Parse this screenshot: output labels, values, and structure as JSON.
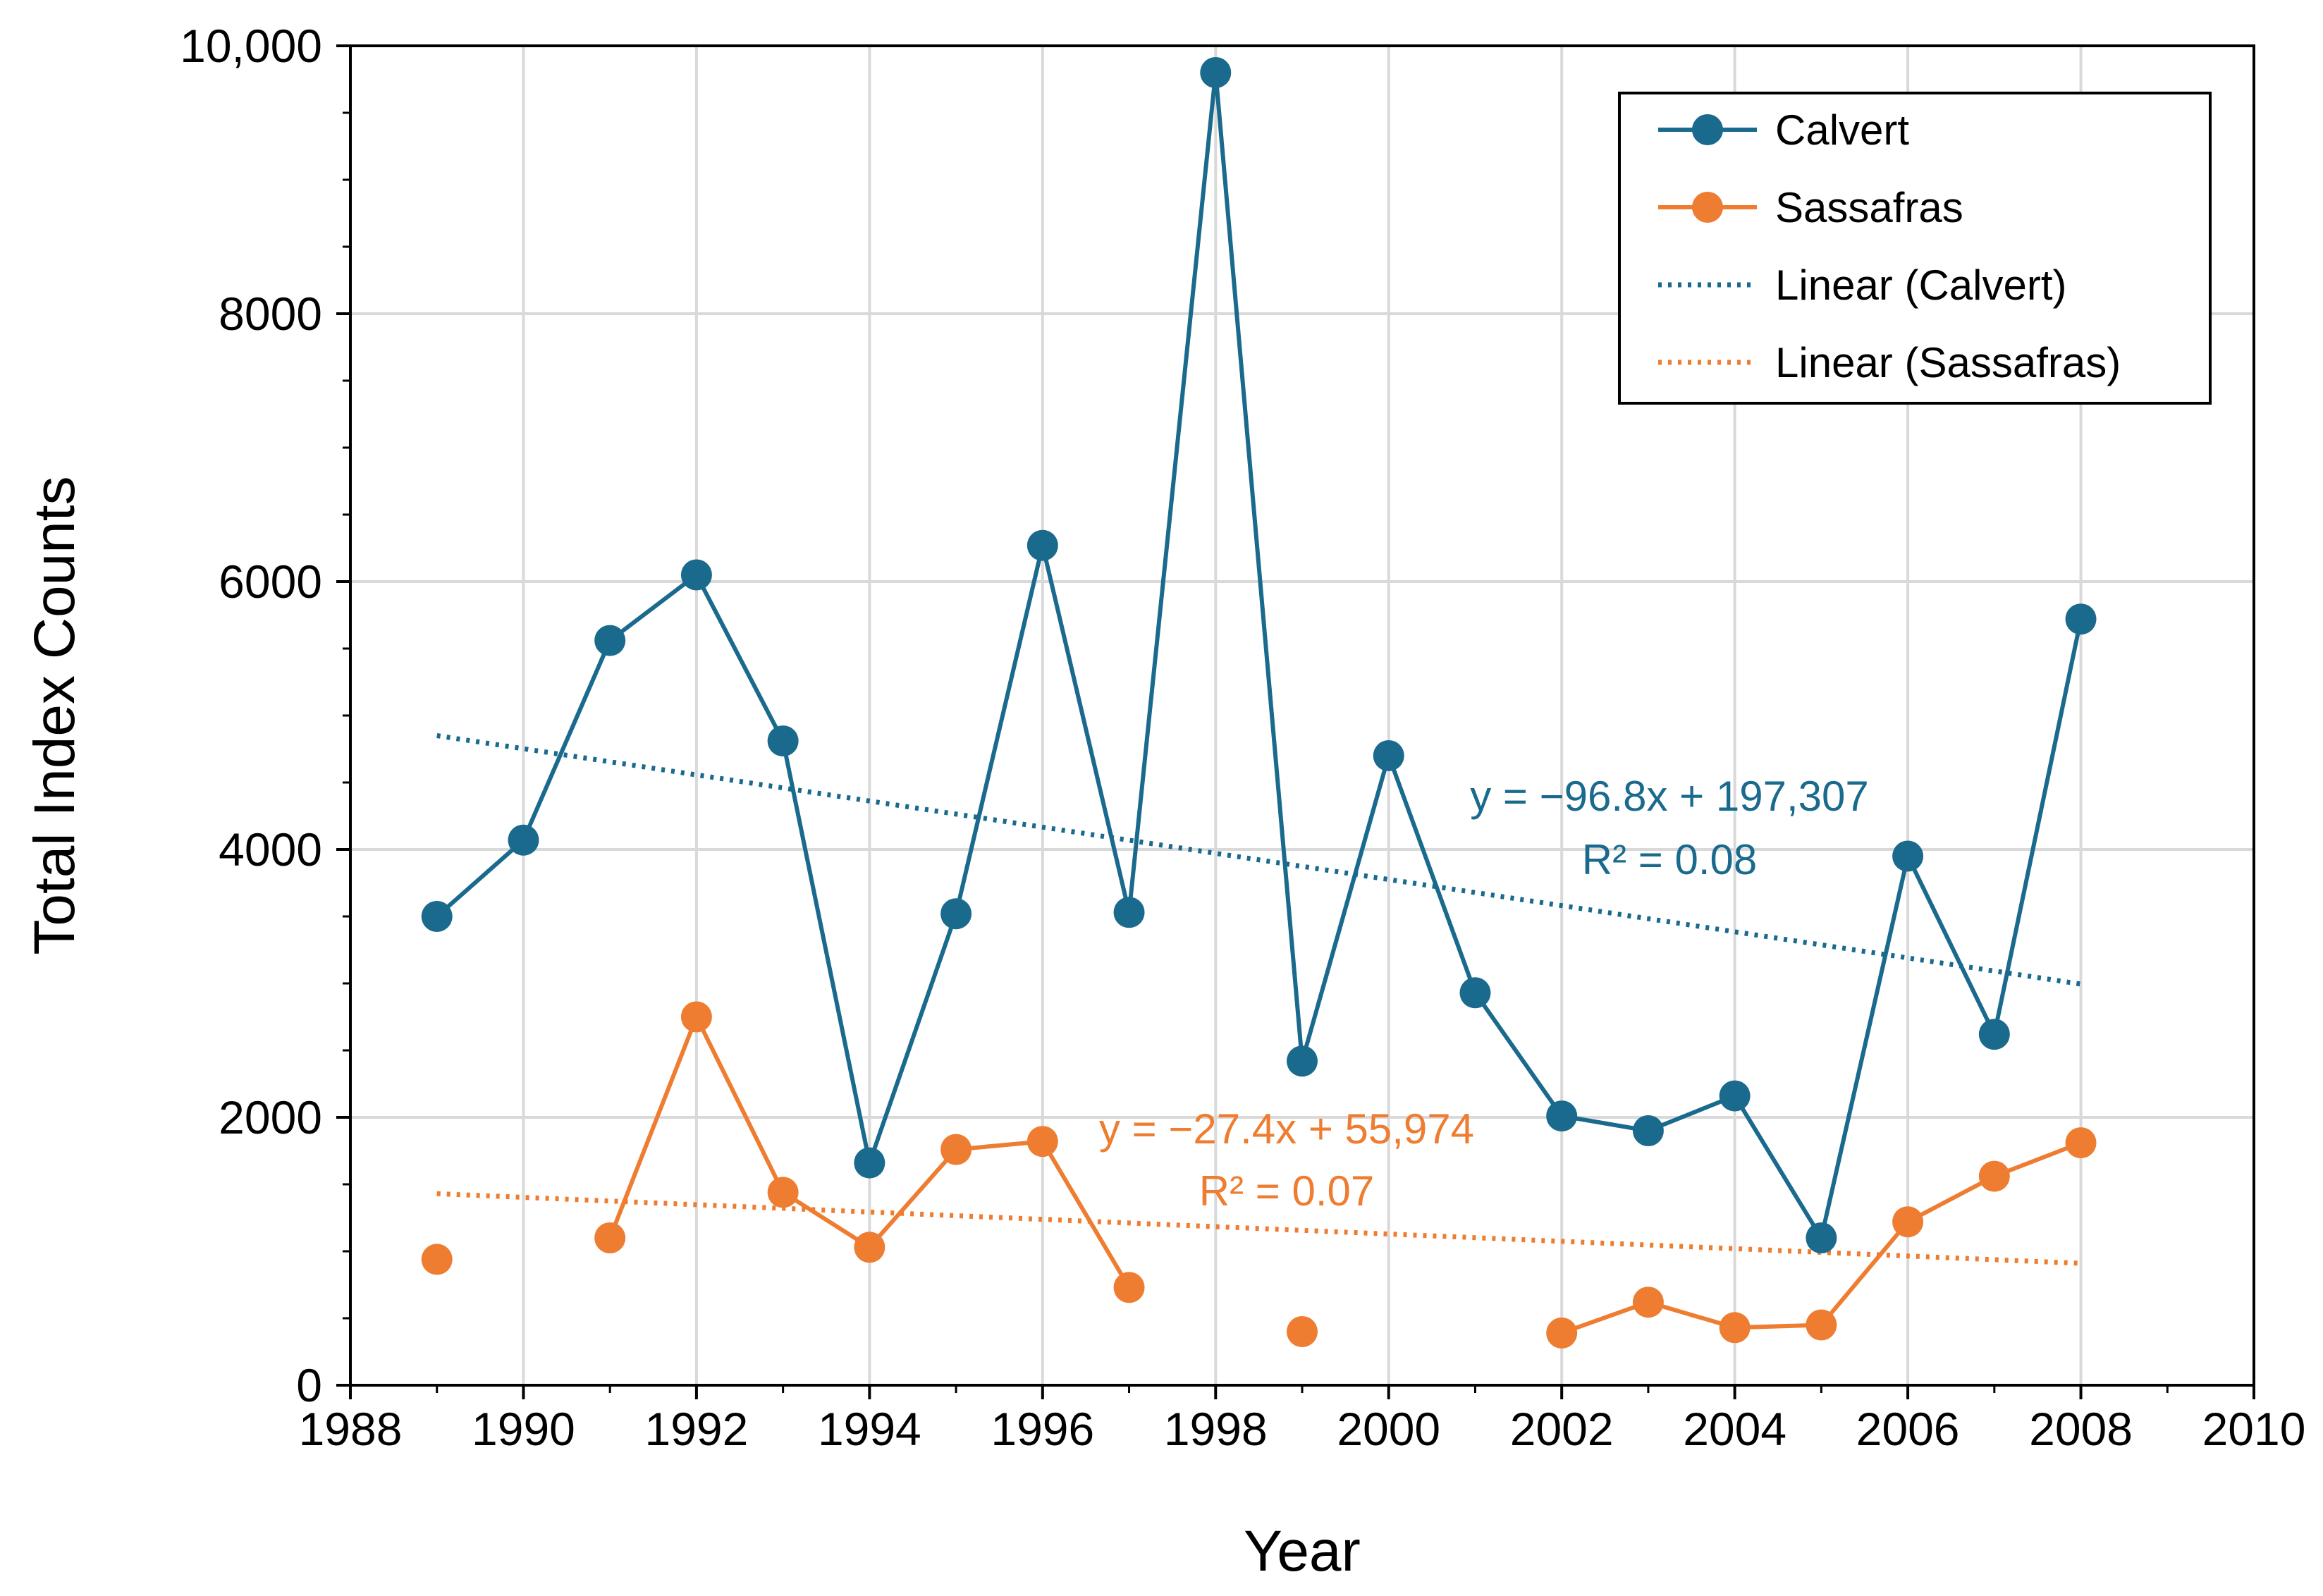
{
  "chart_data": {
    "type": "line",
    "xlabel": "Year",
    "ylabel": "Total Index Counts",
    "xlim": [
      1988,
      2010
    ],
    "ylim": [
      0,
      10000
    ],
    "xticks": [
      1988,
      1990,
      1992,
      1994,
      1996,
      1998,
      2000,
      2002,
      2004,
      2006,
      2008,
      2010
    ],
    "xtick_labels": [
      "1988",
      "1990",
      "1992",
      "1994",
      "1996",
      "1998",
      "2000",
      "2002",
      "2004",
      "2006",
      "2008",
      "2010"
    ],
    "yticks": [
      0,
      2000,
      4000,
      6000,
      8000,
      10000
    ],
    "ytick_labels": [
      "0",
      "2000",
      "4000",
      "6000",
      "8000",
      "10,000"
    ],
    "grid": true,
    "legend_position": "top-right",
    "series": [
      {
        "name": "Calvert",
        "color": "#1a6a8e",
        "x": [
          1989,
          1990,
          1991,
          1992,
          1993,
          1994,
          1995,
          1996,
          1997,
          1998,
          1999,
          2000,
          2001,
          2002,
          2003,
          2004,
          2005,
          2006,
          2007,
          2008
        ],
        "y": [
          3500,
          4070,
          5560,
          6050,
          4810,
          1660,
          3520,
          6270,
          3530,
          9800,
          2420,
          4700,
          2930,
          2010,
          1900,
          2160,
          1100,
          3950,
          2620,
          5720
        ],
        "segments": [
          [
            0,
            19
          ]
        ]
      },
      {
        "name": "Sassafras",
        "color": "#ee7d31",
        "x": [
          1989,
          1991,
          1992,
          1993,
          1994,
          1995,
          1996,
          1997,
          1999,
          2002,
          2003,
          2004,
          2005,
          2006,
          2007,
          2008
        ],
        "y": [
          940,
          1100,
          2750,
          1440,
          1030,
          1760,
          1820,
          730,
          400,
          390,
          620,
          430,
          450,
          1220,
          1560,
          1810
        ],
        "segments": [
          [
            1,
            7
          ],
          [
            9,
            15
          ]
        ]
      }
    ],
    "trendlines": [
      {
        "name": "Linear (Calvert)",
        "color": "#1a6a8e",
        "x": [
          1989,
          2008
        ],
        "y": [
          4850,
          2995
        ],
        "equation": "y = −96.8x + 197,307",
        "r2": "R² = 0.08"
      },
      {
        "name": "Linear (Sassafras)",
        "color": "#ee7d31",
        "x": [
          1989,
          2008
        ],
        "y": [
          1430,
          910
        ],
        "equation": "y = −27.4x + 55,974",
        "r2": "R² = 0.07"
      }
    ],
    "legend": [
      "Calvert",
      "Sassafras",
      "Linear (Calvert)",
      "Linear (Sassafras)"
    ]
  }
}
